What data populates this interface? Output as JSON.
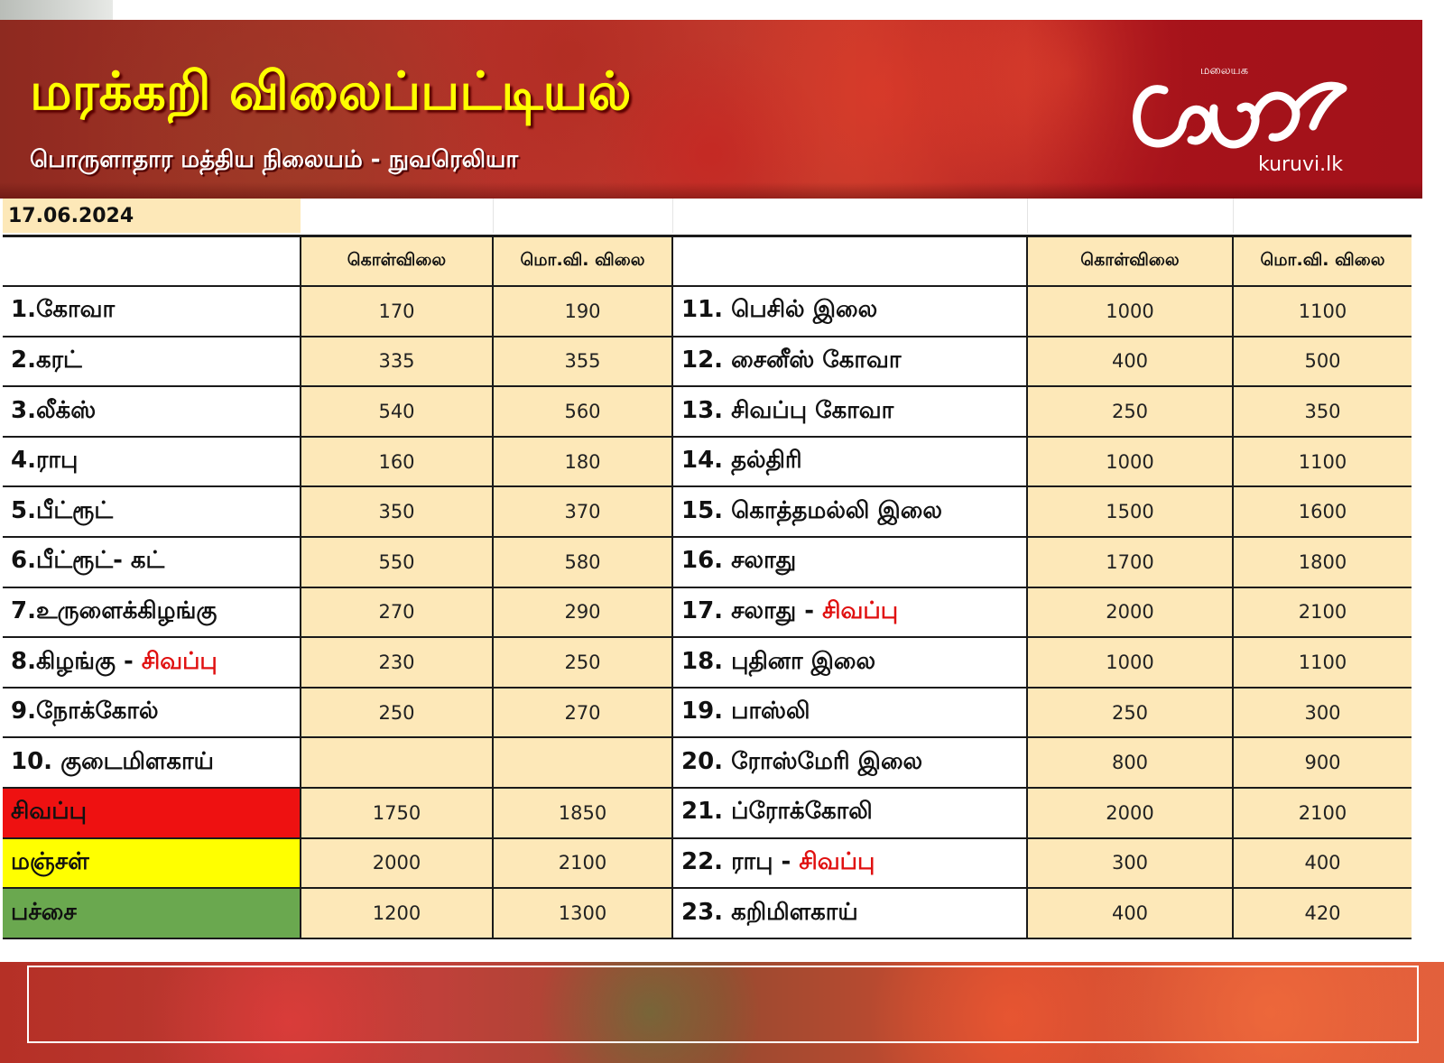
{
  "header": {
    "title": "மரக்கறி விலைப்பட்டியல்",
    "subtitle": "பொருளாதார மத்திய நிலையம் - நுவரெலியா",
    "logo_text": "குருவி",
    "logo_tagline": "மலையக",
    "logo_url": "kuruvi.lk"
  },
  "table": {
    "date": "17.06.2024",
    "headers": {
      "wholesale": "கொள்விலை",
      "retail": "மொ.வி. விலை"
    },
    "left_rows": [
      {
        "name": "1.கோவா",
        "highlight": "",
        "wholesale": "170",
        "retail": "190"
      },
      {
        "name": "2.கரட்",
        "highlight": "",
        "wholesale": "335",
        "retail": "355"
      },
      {
        "name": "3.லீக்ஸ்",
        "highlight": "",
        "wholesale": "540",
        "retail": "560"
      },
      {
        "name": "4.ராபு",
        "highlight": "",
        "wholesale": "160",
        "retail": "180"
      },
      {
        "name": "5.பீட்ரூட்",
        "highlight": "",
        "wholesale": "350",
        "retail": "370"
      },
      {
        "name": "6.பீட்ரூட்- கட்",
        "highlight": "",
        "wholesale": "550",
        "retail": "580"
      },
      {
        "name": "7.உருளைக்கிழங்கு",
        "highlight": "",
        "wholesale": "270",
        "retail": "290"
      },
      {
        "name": "8.கிழங்கு - ",
        "highlight": "சிவப்பு",
        "wholesale": "230",
        "retail": "250"
      },
      {
        "name": "9.நோக்கோல்",
        "highlight": "",
        "wholesale": "250",
        "retail": "270"
      },
      {
        "name": "10. குடைமிளகாய்",
        "highlight": "",
        "wholesale": "",
        "retail": ""
      },
      {
        "name": "சிவப்பு",
        "highlight": "",
        "wholesale": "1750",
        "retail": "1850",
        "swatch": "red"
      },
      {
        "name": "மஞ்சள்",
        "highlight": "",
        "wholesale": "2000",
        "retail": "2100",
        "swatch": "yellow"
      },
      {
        "name": "பச்சை",
        "highlight": "",
        "wholesale": "1200",
        "retail": "1300",
        "swatch": "green"
      }
    ],
    "right_rows": [
      {
        "name": "11. பெசில் இலை",
        "highlight": "",
        "wholesale": "1000",
        "retail": "1100"
      },
      {
        "name": "12. சைனீஸ் கோவா",
        "highlight": "",
        "wholesale": "400",
        "retail": "500"
      },
      {
        "name": "13. சிவப்பு கோவா",
        "highlight": "",
        "wholesale": "250",
        "retail": "350"
      },
      {
        "name": "14. தல்திரி",
        "highlight": "",
        "wholesale": "1000",
        "retail": "1100"
      },
      {
        "name": "15. கொத்தமல்லி இலை",
        "highlight": "",
        "wholesale": "1500",
        "retail": "1600"
      },
      {
        "name": "16. சலாது",
        "highlight": "",
        "wholesale": "1700",
        "retail": "1800"
      },
      {
        "name": "17. சலாது - ",
        "highlight": "சிவப்பு",
        "wholesale": "2000",
        "retail": "2100"
      },
      {
        "name": "18. புதினா இலை",
        "highlight": "",
        "wholesale": "1000",
        "retail": "1100"
      },
      {
        "name": "19. பாஸ்லி",
        "highlight": "",
        "wholesale": "250",
        "retail": "300"
      },
      {
        "name": "20. ரோஸ்மேரி இலை",
        "highlight": "",
        "wholesale": "800",
        "retail": "900"
      },
      {
        "name": "21. ப்ரோக்கோலி",
        "highlight": "",
        "wholesale": "2000",
        "retail": "2100"
      },
      {
        "name": "22. ராபு - ",
        "highlight": "சிவப்பு",
        "wholesale": "300",
        "retail": "400"
      },
      {
        "name": "23. கறிமிளகாய்",
        "highlight": "",
        "wholesale": "400",
        "retail": "420"
      }
    ]
  },
  "colors": {
    "banner_red": "#a3121a",
    "title_yellow": "#ffff00",
    "price_cell": "#fde8b8",
    "swatch_red": "#ee1111",
    "swatch_yellow": "#ffff00",
    "swatch_green": "#6aa84f",
    "highlight_red": "#e01010"
  }
}
